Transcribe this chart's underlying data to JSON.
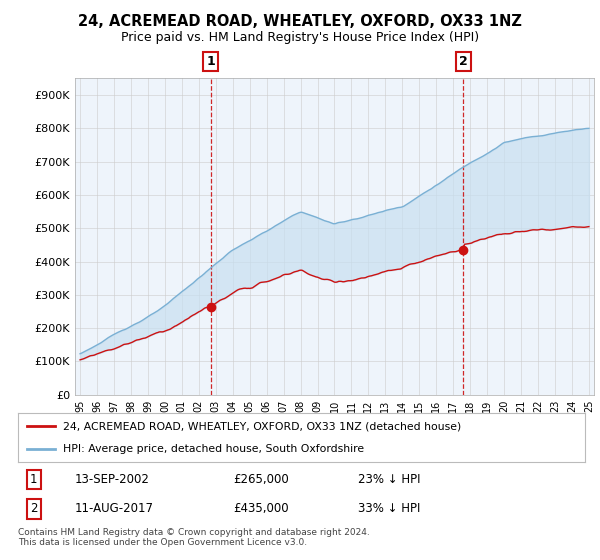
{
  "title": "24, ACREMEAD ROAD, WHEATLEY, OXFORD, OX33 1NZ",
  "subtitle": "Price paid vs. HM Land Registry's House Price Index (HPI)",
  "ylim": [
    0,
    950000
  ],
  "yticks": [
    0,
    100000,
    200000,
    300000,
    400000,
    500000,
    600000,
    700000,
    800000,
    900000
  ],
  "ytick_labels": [
    "£0",
    "£100K",
    "£200K",
    "£300K",
    "£400K",
    "£500K",
    "£600K",
    "£700K",
    "£800K",
    "£900K"
  ],
  "hpi_color": "#7ab0d4",
  "price_color": "#cc1111",
  "fill_color": "#ddeeff",
  "sale1_year": 2002.7,
  "sale1_price": 265000,
  "sale2_year": 2017.6,
  "sale2_price": 435000,
  "sale1_date": "13-SEP-2002",
  "sale1_price_str": "£265,000",
  "sale1_pct": "23% ↓ HPI",
  "sale2_date": "11-AUG-2017",
  "sale2_price_str": "£435,000",
  "sale2_pct": "33% ↓ HPI",
  "legend_label1": "24, ACREMEAD ROAD, WHEATLEY, OXFORD, OX33 1NZ (detached house)",
  "legend_label2": "HPI: Average price, detached house, South Oxfordshire",
  "footnote": "Contains HM Land Registry data © Crown copyright and database right 2024.\nThis data is licensed under the Open Government Licence v3.0.",
  "background_color": "#ffffff",
  "grid_color": "#cccccc"
}
